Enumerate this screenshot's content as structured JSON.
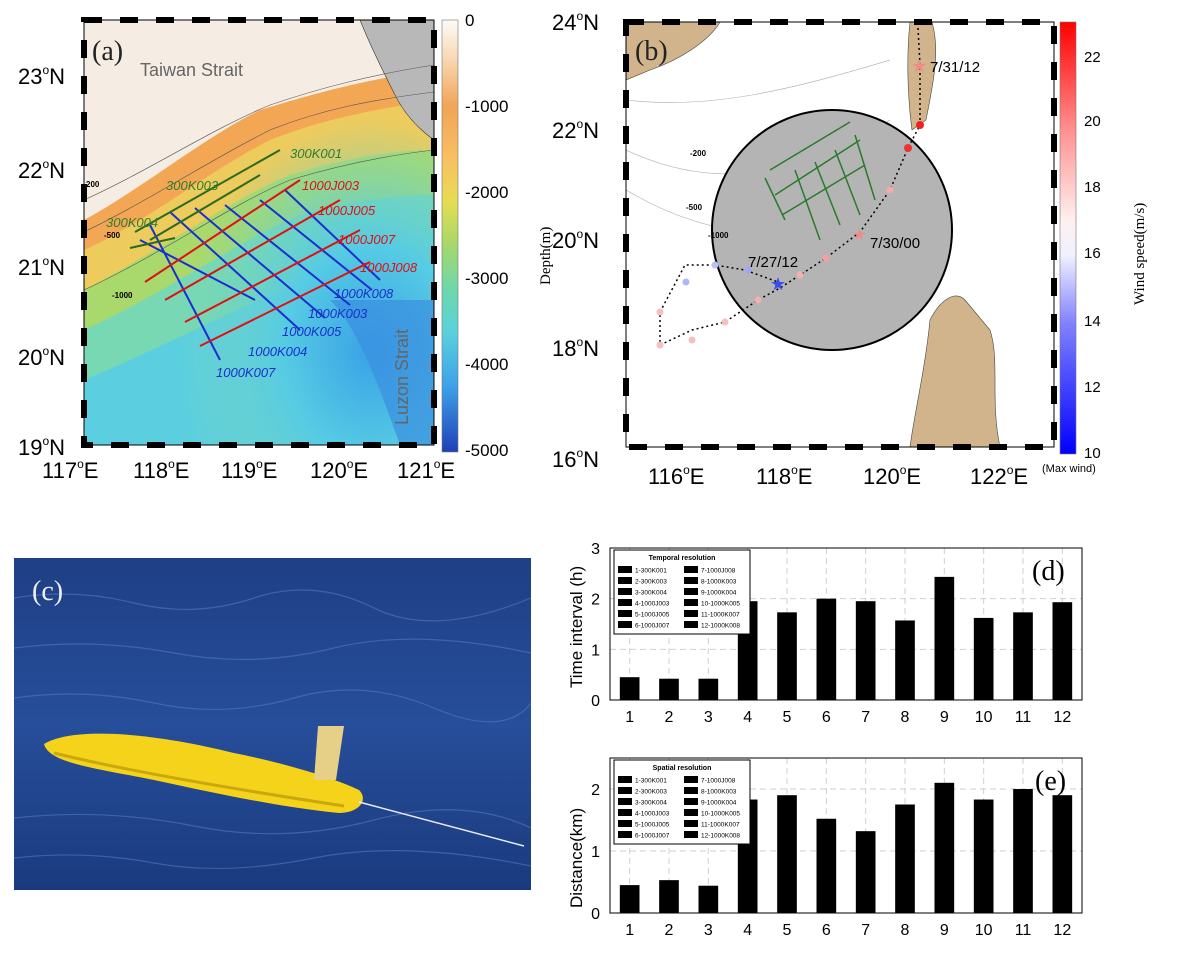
{
  "panel_a": {
    "label": "(a)",
    "strait_taiwan": "Taiwan Strait",
    "strait_luzon": "Luzon Strait",
    "iso_labels": [
      "200",
      "-500",
      "-1000"
    ],
    "lon_ticks": [
      "117",
      "118",
      "119",
      "120",
      "121"
    ],
    "lat_ticks": [
      "19",
      "20",
      "21",
      "22",
      "23"
    ],
    "lon_unit": "E",
    "lat_unit": "N",
    "colorbar_label": "Depth(m)",
    "colorbar_ticks": [
      "0",
      "-1000",
      "-2000",
      "-3000",
      "-4000",
      "-5000"
    ],
    "glider_labels": [
      {
        "text": "300K001",
        "color": "#2e7d32"
      },
      {
        "text": "300K003",
        "color": "#2e7d32"
      },
      {
        "text": "300K004",
        "color": "#2e7d32"
      },
      {
        "text": "1000J003",
        "color": "#dd1111"
      },
      {
        "text": "1000J005",
        "color": "#dd1111"
      },
      {
        "text": "1000J007",
        "color": "#dd1111"
      },
      {
        "text": "1000J008",
        "color": "#dd1111"
      },
      {
        "text": "1000K008",
        "color": "#1a2fcc"
      },
      {
        "text": "1000K003",
        "color": "#1a2fcc"
      },
      {
        "text": "1000K005",
        "color": "#1a2fcc"
      },
      {
        "text": "1000K004",
        "color": "#1a2fcc"
      },
      {
        "text": "1000K007",
        "color": "#1a2fcc"
      }
    ]
  },
  "panel_b": {
    "label": "(b)",
    "lon_ticks": [
      "116",
      "118",
      "120",
      "122"
    ],
    "lat_ticks": [
      "16",
      "18",
      "20",
      "22",
      "24"
    ],
    "iso_labels": [
      "-200",
      "-500",
      "-1000"
    ],
    "track_labels": [
      "7/31/12",
      "7/30/00",
      "7/27/12"
    ],
    "colorbar_label": "Wind speed(m/s)",
    "colorbar_ticks": [
      "22",
      "20",
      "18",
      "16",
      "14",
      "12",
      "10"
    ],
    "colorbar_note": "(Max wind)"
  },
  "panel_c": {
    "label": "(c)"
  },
  "legend_items": [
    "1-300K001",
    "7-1000J008",
    "2-300K003",
    "8-1000K003",
    "3-300K004",
    "9-1000K004",
    "4-1000J003",
    "10-1000K005",
    "5-1000J005",
    "11-1000K007",
    "6-1000J007",
    "12-1000K008"
  ],
  "chart_data": [
    {
      "type": "bar",
      "panel": "(d)",
      "legend_title": "Temporal resolution",
      "categories": [
        "1",
        "2",
        "3",
        "4",
        "5",
        "6",
        "7",
        "8",
        "9",
        "10",
        "11",
        "12"
      ],
      "values": [
        0.45,
        0.42,
        0.42,
        1.95,
        1.73,
        2.0,
        1.95,
        1.57,
        2.43,
        1.62,
        1.73,
        1.93
      ],
      "ylabel": "Time interval (h)",
      "ylim": [
        0,
        3
      ],
      "yticks": [
        "0",
        "1",
        "2",
        "3"
      ],
      "grid": true,
      "legend_placement": "top-left"
    },
    {
      "type": "bar",
      "panel": "(e)",
      "legend_title": "Spatial resolution",
      "categories": [
        "1",
        "2",
        "3",
        "4",
        "5",
        "6",
        "7",
        "8",
        "9",
        "10",
        "11",
        "12"
      ],
      "values": [
        0.45,
        0.53,
        0.44,
        1.83,
        1.9,
        1.52,
        1.32,
        1.75,
        2.1,
        1.83,
        2.0,
        1.9
      ],
      "ylabel": "Distance(km)",
      "ylim": [
        0,
        2.5
      ],
      "yticks": [
        "0",
        "1",
        "2"
      ],
      "grid": true,
      "legend_placement": "top-left"
    }
  ]
}
